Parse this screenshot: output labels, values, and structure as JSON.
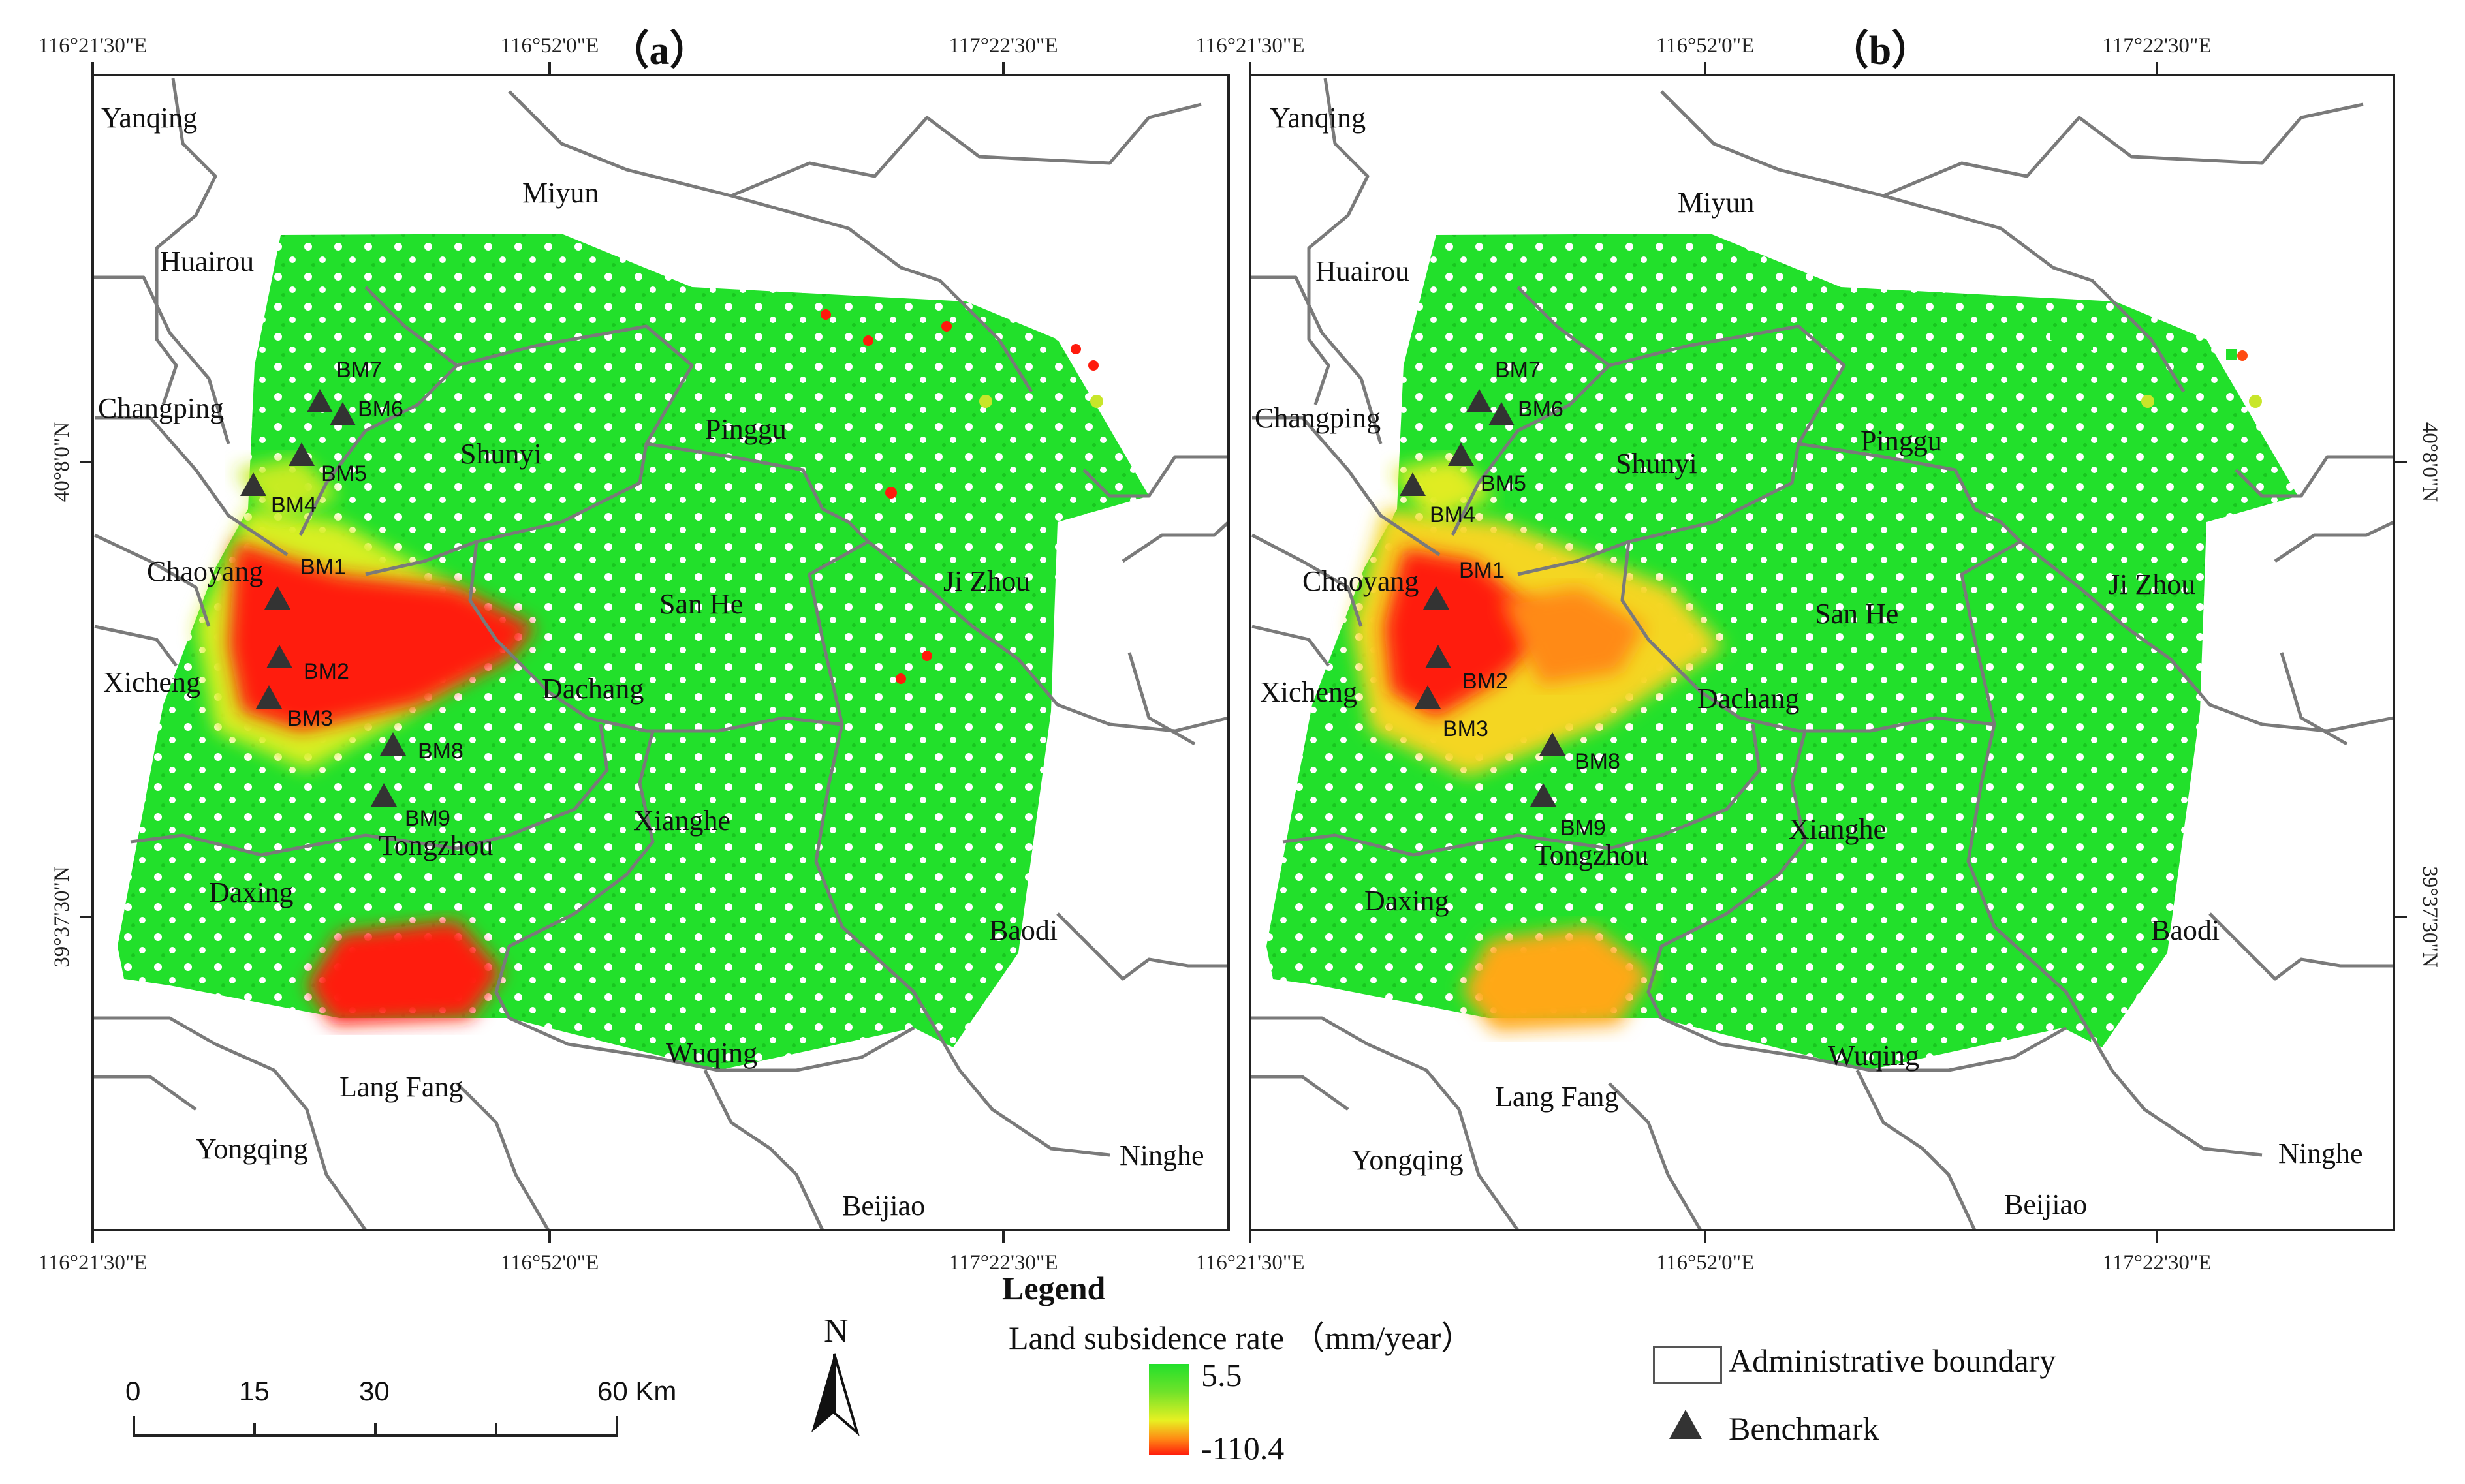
{
  "panels": [
    {
      "title": "（a）",
      "top_ticks": [
        "116°21'30\"E",
        "116°52'0\"E",
        "117°22'30\"E"
      ],
      "bottom_ticks": [
        "116°21'30\"E",
        "116°52'0\"E",
        "117°22'30\"E"
      ],
      "left_ticks": [
        "40°8'0\"N",
        "39°37'30\"N"
      ]
    },
    {
      "title": "（b）",
      "top_ticks": [
        "116°21'30\"E",
        "116°52'0\"E",
        "117°22'30\"E"
      ],
      "bottom_ticks": [
        "116°21'30\"E",
        "116°52'0\"E",
        "117°22'30\"E"
      ],
      "right_ticks": [
        "40°8'0\"N",
        "39°37'30\"N"
      ]
    }
  ],
  "places": [
    "Yanqing",
    "Miyun",
    "Huairou",
    "Changping",
    "Shunyi",
    "Pinggu",
    "Chaoyang",
    "San He",
    "Ji Zhou",
    "Xicheng",
    "Dachang",
    "Xianghe",
    "Tongzhou",
    "Daxing",
    "Baodi",
    "Wuqing",
    "Lang Fang",
    "Yongqing",
    "Ninghe",
    "Beijiao"
  ],
  "benchmarks": [
    "BM1",
    "BM2",
    "BM3",
    "BM4",
    "BM5",
    "BM6",
    "BM7",
    "BM8",
    "BM9"
  ],
  "legend": {
    "heading": "Legend",
    "rate_label": "Land subsidence rate （mm/year）",
    "max": "5.5",
    "min": "-110.4",
    "boundary_label": "Administrative boundary",
    "benchmark_label": "Benchmark",
    "colors": {
      "high": "#22e02b",
      "mid": "#e8f022",
      "low": "#ff1a0c"
    }
  },
  "scale_bar": {
    "labels": [
      "0",
      "15",
      "30",
      "60 Km"
    ]
  },
  "north_arrow": "N"
}
